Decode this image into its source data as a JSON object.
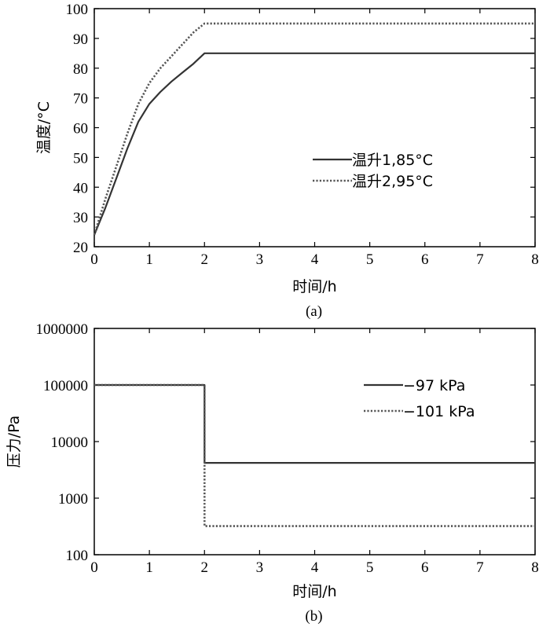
{
  "chart_data": [
    {
      "type": "line",
      "panel_label": "(a)",
      "xlabel": "时间/h",
      "ylabel": "温度/°C",
      "xlim": [
        0,
        8
      ],
      "ylim": [
        20,
        100
      ],
      "x_ticks": [
        0,
        1,
        2,
        3,
        4,
        5,
        6,
        7,
        8
      ],
      "y_ticks": [
        20,
        30,
        40,
        50,
        60,
        70,
        80,
        90,
        100
      ],
      "y_scale": "linear",
      "grid": false,
      "legend_position": "center-right",
      "series": [
        {
          "name": "温升1,85°C",
          "style": "solid",
          "color": "#333333",
          "points": [
            [
              0,
              24
            ],
            [
              0.2,
              33
            ],
            [
              0.4,
              43
            ],
            [
              0.6,
              53
            ],
            [
              0.8,
              62
            ],
            [
              1.0,
              68
            ],
            [
              1.2,
              72
            ],
            [
              1.4,
              75.5
            ],
            [
              1.6,
              78.5
            ],
            [
              1.8,
              81.5
            ],
            [
              2.0,
              85
            ],
            [
              8.0,
              85
            ]
          ]
        },
        {
          "name": "温升2,95°C",
          "style": "dotted",
          "color": "#555555",
          "points": [
            [
              0,
              24
            ],
            [
              0.2,
              36
            ],
            [
              0.4,
              47
            ],
            [
              0.6,
              58
            ],
            [
              0.8,
              68
            ],
            [
              1.0,
              75
            ],
            [
              1.2,
              80
            ],
            [
              1.4,
              84
            ],
            [
              1.6,
              88
            ],
            [
              1.8,
              92
            ],
            [
              2.0,
              95
            ],
            [
              8.0,
              95
            ]
          ]
        }
      ]
    },
    {
      "type": "line",
      "panel_label": "(b)",
      "xlabel": "时间/h",
      "ylabel": "压力/Pa",
      "xlim": [
        0,
        8
      ],
      "ylim": [
        100,
        1000000
      ],
      "x_ticks": [
        0,
        1,
        2,
        3,
        4,
        5,
        6,
        7,
        8
      ],
      "y_ticks": [
        100,
        1000,
        10000,
        100000,
        1000000
      ],
      "y_tick_labels": [
        "100",
        "1000",
        "10000",
        "100000",
        "1000000"
      ],
      "y_scale": "log",
      "grid": false,
      "legend_position": "top-right",
      "series": [
        {
          "name": "−97 kPa",
          "style": "solid",
          "color": "#333333",
          "points": [
            [
              0,
              100000
            ],
            [
              2.0,
              100000
            ],
            [
              2.0,
              4200
            ],
            [
              8.0,
              4200
            ]
          ]
        },
        {
          "name": "−101 kPa",
          "style": "dotted",
          "color": "#555555",
          "points": [
            [
              0,
              100000
            ],
            [
              2.0,
              100000
            ],
            [
              2.0,
              320
            ],
            [
              8.0,
              320
            ]
          ]
        }
      ]
    }
  ]
}
